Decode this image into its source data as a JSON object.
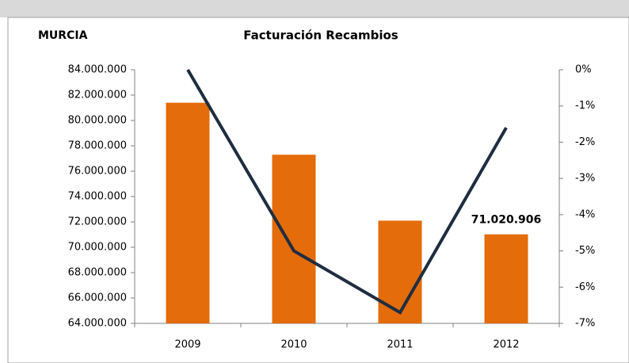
{
  "chart_data": {
    "type": "bar",
    "title": "Facturación Recambios",
    "subtitle": "MURCIA",
    "categories": [
      "2009",
      "2010",
      "2011",
      "2012"
    ],
    "series": [
      {
        "type": "bar",
        "color": "#e46c0a",
        "values": [
          81400000,
          77300000,
          72100000,
          71020906
        ],
        "value_labels": [
          null,
          null,
          null,
          "71.020.906"
        ]
      },
      {
        "type": "line",
        "axis": "y2",
        "color": "#1f2d40",
        "values": [
          0,
          -5.0,
          -6.7,
          -1.6
        ]
      }
    ],
    "ylim": [
      64000000,
      84000000
    ],
    "yticks": [
      {
        "value": 64000000,
        "label": "64.000.000"
      },
      {
        "value": 66000000,
        "label": "66.000.000"
      },
      {
        "value": 68000000,
        "label": "68.000.000"
      },
      {
        "value": 70000000,
        "label": "70.000.000"
      },
      {
        "value": 72000000,
        "label": "72.000.000"
      },
      {
        "value": 74000000,
        "label": "74.000.000"
      },
      {
        "value": 76000000,
        "label": "76.000.000"
      },
      {
        "value": 78000000,
        "label": "78.000.000"
      },
      {
        "value": 80000000,
        "label": "80.000.000"
      },
      {
        "value": 82000000,
        "label": "82.000.000"
      },
      {
        "value": 84000000,
        "label": "84.000.000"
      }
    ],
    "y2lim": [
      -7,
      0
    ],
    "y2ticks": [
      {
        "value": -7,
        "label": "-7%"
      },
      {
        "value": -6,
        "label": "-6%"
      },
      {
        "value": -5,
        "label": "-5%"
      },
      {
        "value": -4,
        "label": "-4%"
      },
      {
        "value": -3,
        "label": "-3%"
      },
      {
        "value": -2,
        "label": "-2%"
      },
      {
        "value": -1,
        "label": "-1%"
      },
      {
        "value": 0,
        "label": "0%"
      }
    ],
    "grid": false
  }
}
